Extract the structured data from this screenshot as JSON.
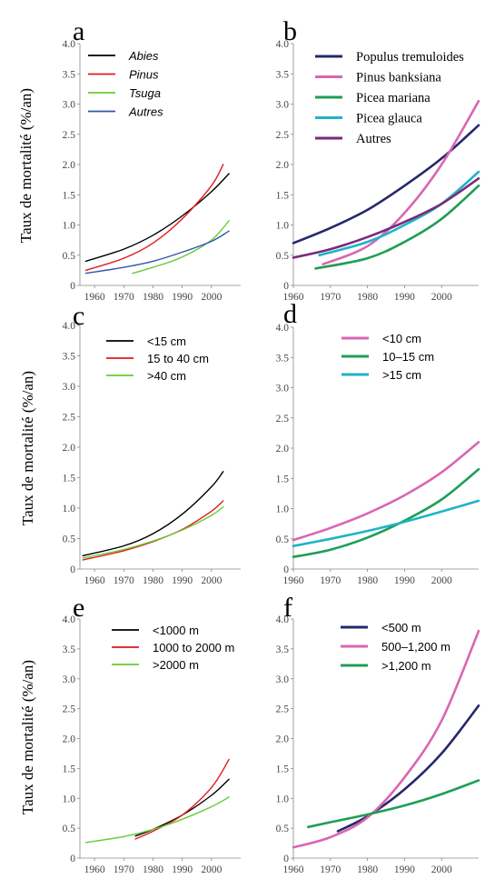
{
  "y_axis_label": "Taux de mortalité (%/an)",
  "chart_data": [
    {
      "panel": "a",
      "type": "line",
      "xlim": [
        1955,
        2010
      ],
      "ylim": [
        0,
        4.0
      ],
      "x_ticks": [
        "1960",
        "1970",
        "1980",
        "1990",
        "2000"
      ],
      "y_ticks": [
        "0",
        "0.5",
        "1.0",
        "1.5",
        "2.0",
        "2.5",
        "3.0",
        "3.5",
        "4.0"
      ],
      "legend_position": "top-left",
      "legend_italic": true,
      "series": [
        {
          "name": "Abies",
          "color": "#000000",
          "x": [
            1957,
            1970,
            1980,
            1990,
            2000,
            2006
          ],
          "y": [
            0.4,
            0.6,
            0.83,
            1.15,
            1.55,
            1.85
          ]
        },
        {
          "name": "Pinus",
          "color": "#e31a1c",
          "x": [
            1957,
            1970,
            1980,
            1990,
            2000,
            2004
          ],
          "y": [
            0.25,
            0.45,
            0.7,
            1.1,
            1.65,
            2.0
          ]
        },
        {
          "name": "Tsuga",
          "color": "#66cc33",
          "x": [
            1973,
            1980,
            1990,
            2000,
            2006
          ],
          "y": [
            0.2,
            0.3,
            0.47,
            0.75,
            1.07
          ]
        },
        {
          "name": "Autres",
          "color": "#3355aa",
          "x": [
            1957,
            1970,
            1980,
            1990,
            2000,
            2006
          ],
          "y": [
            0.2,
            0.3,
            0.4,
            0.55,
            0.73,
            0.9
          ]
        }
      ]
    },
    {
      "panel": "b",
      "type": "line",
      "xlim": [
        1960,
        2010
      ],
      "ylim": [
        0,
        4.0
      ],
      "x_ticks": [
        "1960",
        "1970",
        "1980",
        "1990",
        "2000"
      ],
      "y_ticks": [
        "0",
        "0.5",
        "1.0",
        "1.5",
        "2.0",
        "2.5",
        "3.0",
        "3.5",
        "4.0"
      ],
      "legend_position": "top-left",
      "series": [
        {
          "name": "Populus tremuloides",
          "color": "#26286b",
          "x": [
            1960,
            1970,
            1980,
            1990,
            2000,
            2010
          ],
          "y": [
            0.7,
            0.95,
            1.25,
            1.65,
            2.1,
            2.65
          ]
        },
        {
          "name": "Pinus banksiana",
          "color": "#d966b3",
          "x": [
            1968,
            1980,
            1990,
            2000,
            2010
          ],
          "y": [
            0.35,
            0.65,
            1.2,
            2.0,
            3.05
          ]
        },
        {
          "name": "Picea mariana",
          "color": "#1f9e56",
          "x": [
            1966,
            1980,
            1990,
            2000,
            2010
          ],
          "y": [
            0.28,
            0.45,
            0.72,
            1.1,
            1.65
          ]
        },
        {
          "name": "Picea glauca",
          "color": "#1fb3c9",
          "x": [
            1967,
            1980,
            1990,
            2000,
            2010
          ],
          "y": [
            0.5,
            0.72,
            1.0,
            1.35,
            1.88
          ]
        },
        {
          "name": "Autres",
          "color": "#7a2a7a",
          "x": [
            1960,
            1970,
            1980,
            1990,
            2000,
            2010
          ],
          "y": [
            0.46,
            0.6,
            0.8,
            1.05,
            1.35,
            1.77
          ]
        }
      ]
    },
    {
      "panel": "c",
      "type": "line",
      "xlim": [
        1955,
        2010
      ],
      "ylim": [
        0,
        4.0
      ],
      "x_ticks": [
        "1960",
        "1970",
        "1980",
        "1990",
        "2000"
      ],
      "y_ticks": [
        "0",
        "0.5",
        "1.0",
        "1.5",
        "2.0",
        "2.5",
        "3.0",
        "3.5",
        "4.0"
      ],
      "legend_position": "top-left",
      "series": [
        {
          "name": "<15 cm",
          "color": "#000000",
          "x": [
            1956,
            1970,
            1980,
            1990,
            2000,
            2004
          ],
          "y": [
            0.22,
            0.38,
            0.58,
            0.9,
            1.35,
            1.6
          ]
        },
        {
          "name": "15 to 40 cm",
          "color": "#e31a1c",
          "x": [
            1956,
            1970,
            1980,
            1990,
            2000,
            2004
          ],
          "y": [
            0.15,
            0.3,
            0.45,
            0.65,
            0.95,
            1.12
          ]
        },
        {
          "name": ">40 cm",
          "color": "#66cc33",
          "x": [
            1956,
            1970,
            1980,
            1990,
            2000,
            2004
          ],
          "y": [
            0.18,
            0.32,
            0.46,
            0.64,
            0.88,
            1.02
          ]
        }
      ]
    },
    {
      "panel": "d",
      "type": "line",
      "xlim": [
        1960,
        2010
      ],
      "ylim": [
        0,
        4.0
      ],
      "x_ticks": [
        "1960",
        "1970",
        "1980",
        "1990",
        "2000"
      ],
      "y_ticks": [
        "0",
        "0.5",
        "1.0",
        "1.5",
        "2.0",
        "2.5",
        "3.0",
        "3.5",
        "4.0"
      ],
      "legend_position": "top-left",
      "series": [
        {
          "name": "<10 cm",
          "color": "#d966b3",
          "x": [
            1960,
            1970,
            1980,
            1990,
            2000,
            2010
          ],
          "y": [
            0.48,
            0.68,
            0.92,
            1.22,
            1.6,
            2.1
          ]
        },
        {
          "name": "10–15 cm",
          "color": "#1f9e56",
          "x": [
            1960,
            1970,
            1980,
            1990,
            2000,
            2010
          ],
          "y": [
            0.2,
            0.32,
            0.52,
            0.8,
            1.15,
            1.65
          ]
        },
        {
          "name": ">15 cm",
          "color": "#1fb3c9",
          "x": [
            1960,
            1970,
            1980,
            1990,
            2000,
            2010
          ],
          "y": [
            0.38,
            0.5,
            0.63,
            0.78,
            0.95,
            1.13
          ]
        }
      ]
    },
    {
      "panel": "e",
      "type": "line",
      "xlim": [
        1955,
        2010
      ],
      "ylim": [
        0,
        4.0
      ],
      "x_ticks": [
        "1960",
        "1970",
        "1980",
        "1990",
        "2000"
      ],
      "y_ticks": [
        "0",
        "0.5",
        "1.0",
        "1.5",
        "2.0",
        "2.5",
        "3.0",
        "3.5",
        "4.0"
      ],
      "legend_position": "top-left",
      "series": [
        {
          "name": "<1000 m",
          "color": "#000000",
          "x": [
            1974,
            1980,
            1990,
            2000,
            2006
          ],
          "y": [
            0.37,
            0.48,
            0.72,
            1.05,
            1.32
          ]
        },
        {
          "name": "1000 to 2000 m",
          "color": "#e31a1c",
          "x": [
            1974,
            1980,
            1990,
            2000,
            2006
          ],
          "y": [
            0.32,
            0.45,
            0.72,
            1.18,
            1.65
          ]
        },
        {
          "name": ">2000 m",
          "color": "#66cc33",
          "x": [
            1957,
            1970,
            1980,
            1990,
            2000,
            2006
          ],
          "y": [
            0.26,
            0.36,
            0.48,
            0.65,
            0.86,
            1.02
          ]
        }
      ]
    },
    {
      "panel": "f",
      "type": "line",
      "xlim": [
        1960,
        2010
      ],
      "ylim": [
        0,
        4.0
      ],
      "x_ticks": [
        "1960",
        "1970",
        "1980",
        "1990",
        "2000"
      ],
      "y_ticks": [
        "0",
        "0.5",
        "1.0",
        "1.5",
        "2.0",
        "2.5",
        "3.0",
        "3.5",
        "4.0"
      ],
      "legend_position": "top-left",
      "series": [
        {
          "name": "<500 m",
          "color": "#26286b",
          "x": [
            1972,
            1980,
            1990,
            2000,
            2010
          ],
          "y": [
            0.45,
            0.7,
            1.15,
            1.75,
            2.55
          ]
        },
        {
          "name": "500–1,200 m",
          "color": "#d966b3",
          "x": [
            1960,
            1970,
            1980,
            1990,
            2000,
            2010
          ],
          "y": [
            0.18,
            0.35,
            0.68,
            1.35,
            2.3,
            3.8
          ]
        },
        {
          "name": ">1,200 m",
          "color": "#1f9e56",
          "x": [
            1964,
            1970,
            1980,
            1990,
            2000,
            2010
          ],
          "y": [
            0.52,
            0.6,
            0.73,
            0.88,
            1.07,
            1.3
          ]
        }
      ]
    }
  ]
}
